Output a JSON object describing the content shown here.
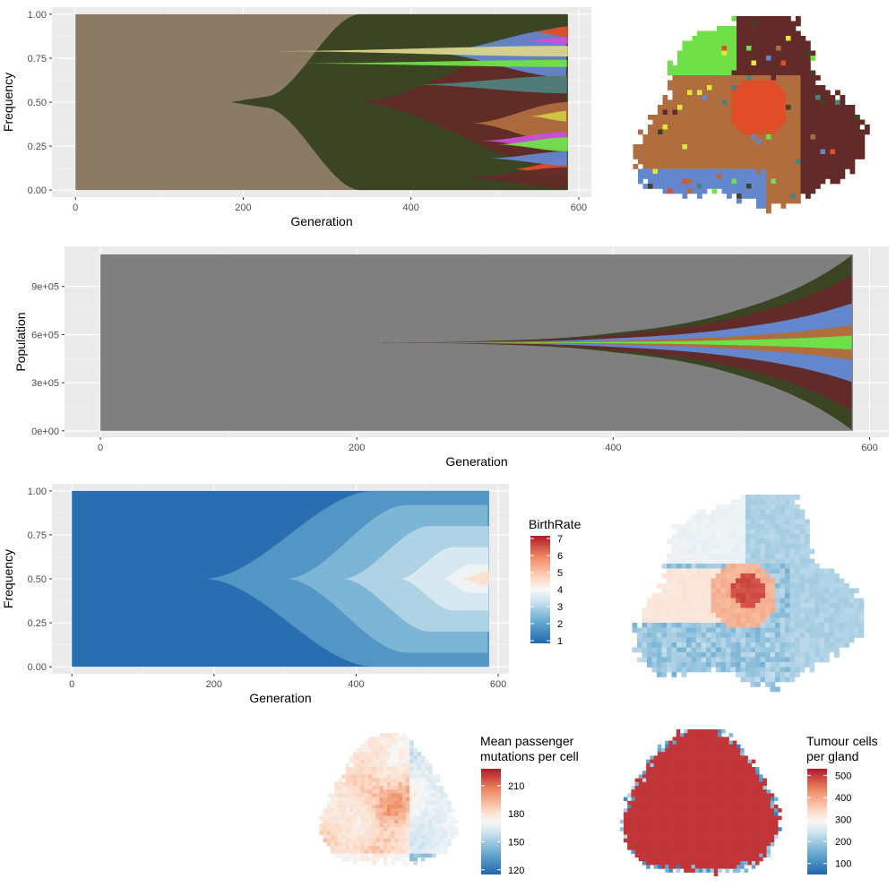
{
  "chart_data": [
    {
      "type": "area",
      "panel": "clone-frequency-muller",
      "xlabel": "Generation",
      "ylabel": "Frequency",
      "xlim": [
        0,
        587
      ],
      "ylim": [
        0,
        1
      ],
      "xticks": [
        0,
        200,
        400,
        600
      ],
      "yticks": [
        "0.00",
        "0.25",
        "0.50",
        "0.75",
        "1.00"
      ],
      "grid": true,
      "background_color": "#8b7b65",
      "dominant_clone_color": "#3b4423",
      "dominant_clone_emerges_at": 185,
      "dominant_clone_frequency": [
        {
          "x": 185,
          "y": 0.0
        },
        {
          "x": 260,
          "y": 0.55
        },
        {
          "x": 320,
          "y": 0.92
        },
        {
          "x": 587,
          "y": 1.0
        }
      ],
      "clone_colors": [
        "#622b29",
        "#6486cc",
        "#6fe047",
        "#b06d3e",
        "#d8d58e",
        "#e04d27",
        "#4f7f7b",
        "#c850d8",
        "#cfca40"
      ]
    },
    {
      "type": "heatmap",
      "panel": "clone-spatial-map",
      "note_colors": [
        "#b06d3e",
        "#6fe047",
        "#622b29",
        "#e04d27",
        "#6486cc",
        "#3b4423",
        "#4f7f7b",
        "#e0e63a"
      ]
    },
    {
      "type": "area",
      "panel": "population-muller",
      "xlabel": "Generation",
      "ylabel": "Population",
      "xlim": [
        0,
        587
      ],
      "ylim": [
        0,
        1100000
      ],
      "xticks": [
        0,
        200,
        400,
        600
      ],
      "yticks": [
        "0e+00",
        "3e+05",
        "6e+05",
        "9e+05"
      ],
      "ytick_values": [
        0,
        300000,
        600000,
        900000
      ],
      "grid": true,
      "background_color": "#7f7f7f",
      "population": [
        {
          "x": 0,
          "y": 1
        },
        {
          "x": 220,
          "y": 1000
        },
        {
          "x": 300,
          "y": 20000
        },
        {
          "x": 400,
          "y": 120000
        },
        {
          "x": 500,
          "y": 420000
        },
        {
          "x": 587,
          "y": 1100000
        }
      ]
    },
    {
      "type": "area",
      "panel": "birthrate-frequency-muller",
      "xlabel": "Generation",
      "ylabel": "Frequency",
      "xlim": [
        0,
        587
      ],
      "ylim": [
        0,
        1
      ],
      "xticks": [
        0,
        200,
        400,
        600
      ],
      "yticks": [
        "0.00",
        "0.25",
        "0.50",
        "0.75",
        "1.00"
      ],
      "grid": true,
      "legend": {
        "title": "BirthRate",
        "ticks": [
          "1",
          "2",
          "3",
          "4",
          "5",
          "6",
          "7"
        ],
        "range": [
          1,
          7
        ],
        "palette": "RdBu-reversed"
      }
    },
    {
      "type": "heatmap",
      "panel": "birthrate-spatial-map",
      "palette": "RdBu-reversed",
      "range": [
        1,
        7
      ]
    },
    {
      "type": "heatmap",
      "panel": "passenger-mutations-map",
      "legend": {
        "title_lines": [
          "Mean passenger",
          "mutations per cell"
        ],
        "ticks": [
          "120",
          "150",
          "180",
          "210"
        ],
        "tick_values": [
          120,
          150,
          180,
          210
        ],
        "range": [
          115,
          228
        ],
        "palette": "RdBu-reversed"
      }
    },
    {
      "type": "heatmap",
      "panel": "tumour-cells-map",
      "legend": {
        "title_lines": [
          "Tumour cells",
          "per gland"
        ],
        "ticks": [
          "100",
          "200",
          "300",
          "400",
          "500"
        ],
        "tick_values": [
          100,
          200,
          300,
          400,
          500
        ],
        "range": [
          50,
          530
        ],
        "palette": "RdBu-reversed"
      },
      "dominant_value": 510
    }
  ]
}
